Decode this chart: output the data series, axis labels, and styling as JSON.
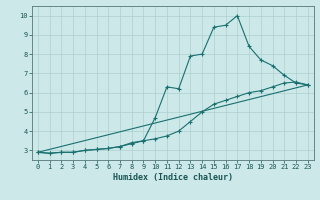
{
  "xlabel": "Humidex (Indice chaleur)",
  "ylabel": "",
  "xlim": [
    -0.5,
    23.5
  ],
  "ylim": [
    2.5,
    10.5
  ],
  "xtick_labels": [
    "0",
    "1",
    "2",
    "3",
    "4",
    "5",
    "6",
    "7",
    "8",
    "9",
    "10",
    "11",
    "12",
    "13",
    "14",
    "15",
    "16",
    "17",
    "18",
    "19",
    "20",
    "21",
    "22",
    "23"
  ],
  "ytick_labels": [
    "3",
    "4",
    "5",
    "6",
    "7",
    "8",
    "9",
    "10"
  ],
  "background_color": "#cce8e8",
  "grid_color": "#aed0d0",
  "line_color": "#1a7070",
  "line1_x": [
    0,
    1,
    2,
    3,
    4,
    5,
    6,
    7,
    8,
    9,
    10,
    11,
    12,
    13,
    14,
    15,
    16,
    17,
    18,
    19,
    20,
    21,
    22,
    23
  ],
  "line1_y": [
    2.9,
    2.85,
    2.9,
    2.9,
    3.0,
    3.05,
    3.1,
    3.2,
    3.4,
    3.5,
    4.7,
    6.3,
    6.2,
    7.9,
    8.0,
    9.4,
    9.5,
    10.0,
    8.4,
    7.7,
    7.4,
    6.9,
    6.5,
    6.4
  ],
  "line2_x": [
    0,
    1,
    2,
    3,
    4,
    5,
    6,
    7,
    8,
    9,
    10,
    11,
    12,
    13,
    14,
    15,
    16,
    17,
    18,
    19,
    20,
    21,
    22,
    23
  ],
  "line2_y": [
    2.9,
    2.85,
    2.9,
    2.9,
    3.0,
    3.05,
    3.1,
    3.2,
    3.35,
    3.5,
    3.6,
    3.75,
    4.0,
    4.5,
    5.0,
    5.4,
    5.6,
    5.8,
    6.0,
    6.1,
    6.3,
    6.5,
    6.55,
    6.4
  ],
  "line3_x": [
    0,
    23
  ],
  "line3_y": [
    2.9,
    6.4
  ],
  "label_fontsize": 5.5,
  "xlabel_fontsize": 6.0,
  "tick_fontsize": 5.0
}
